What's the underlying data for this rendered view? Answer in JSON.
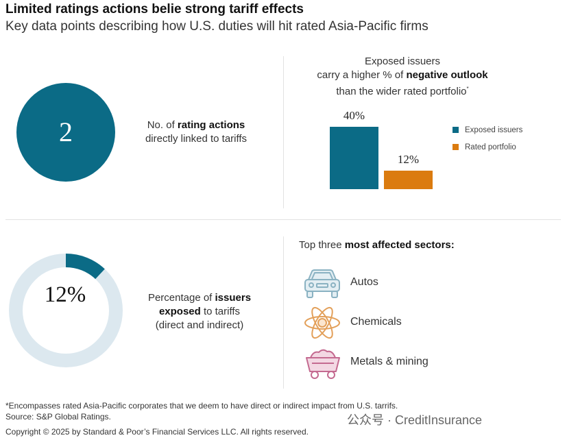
{
  "header": {
    "title": "Limited ratings actions belie strong tariff effects",
    "subtitle": "Key data points describing how U.S. duties will hit rated Asia-Pacific firms"
  },
  "rating_actions": {
    "value": "2",
    "caption_pre": "No. of ",
    "caption_bold": "rating actions",
    "caption_post": "directly linked to tariffs"
  },
  "exposed": {
    "value_label": "12%",
    "caption_pre": "Percentage of ",
    "caption_bold1": "issuers",
    "caption_bold2": "exposed",
    "caption_post1": " to tariffs",
    "caption_post2": "(direct and indirect)",
    "colors": {
      "fill": "#0b6b86",
      "track": "#dce8ef"
    }
  },
  "chart_data": [
    {
      "type": "pie",
      "title": "",
      "values": [
        12,
        88
      ],
      "labels": [
        "",
        ""
      ],
      "center_label": "12%",
      "colors": [
        "#0b6b86",
        "#dce8ef"
      ]
    },
    {
      "type": "bar",
      "title_line1": "Exposed issuers",
      "title_line2_pre": "carry a higher % of ",
      "title_line2_bold": "negative outlook",
      "title_line3": "than the wider rated portfolio",
      "title_marker": "*",
      "categories": [
        "Exposed issuers",
        "Rated portfolio"
      ],
      "values": [
        40,
        12
      ],
      "data_labels": [
        "40%",
        "12%"
      ],
      "ylim": [
        0,
        40
      ],
      "colors": [
        "#0b6b86",
        "#db7b0f"
      ],
      "legend": [
        "Exposed issuers",
        "Rated portfolio"
      ],
      "legend_position": "right",
      "grid": false
    }
  ],
  "sectors": {
    "title_pre": "Top three ",
    "title_bold": "most affected sectors:",
    "items": [
      {
        "label": "Autos",
        "icon": "car-icon",
        "color": "#8ab2c2",
        "fill": "#e3eef3"
      },
      {
        "label": "Chemicals",
        "icon": "atom-icon",
        "color": "#e3a05a",
        "fill": "#fbe6cf"
      },
      {
        "label": "Metals & mining",
        "icon": "mine-cart-icon",
        "color": "#c46a90",
        "fill": "#f3d8e3"
      }
    ]
  },
  "footer": {
    "note": "*Encompasses rated Asia-Pacific corporates that we deem to have direct or indirect impact from U.S. tarrifs.",
    "source": "Source: S&P Global Ratings.",
    "copyright": "Copyright © 2025 by Standard & Poor’s Financial Services LLC. All rights reserved.",
    "watermark": "公众号 · CreditInsurance"
  }
}
